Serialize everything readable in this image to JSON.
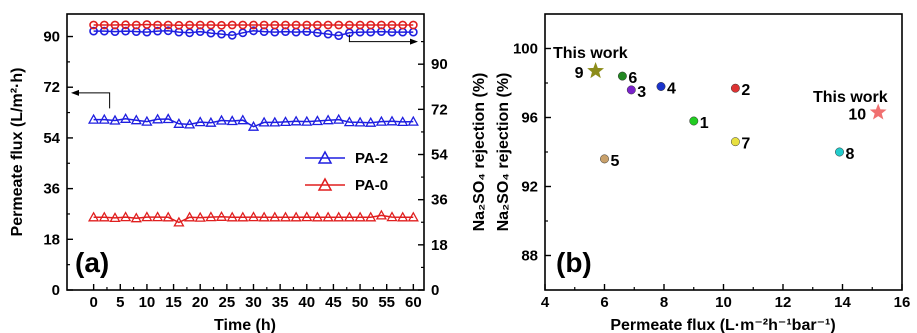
{
  "chart_data": [
    {
      "type": "line",
      "panel_label": "(a)",
      "xlabel": "Time (h)",
      "ylabel_left": "Permeate flux (L/m²·h)",
      "ylabel_right": "Na₂SO₄ rejection (%)",
      "xlim": [
        -5,
        62
      ],
      "ylim_left": [
        0,
        98
      ],
      "ylim_right": [
        0,
        110
      ],
      "xticks": [
        "0",
        "5",
        "10",
        "15",
        "20",
        "25",
        "30",
        "35",
        "40",
        "45",
        "50",
        "55",
        "60"
      ],
      "yticks_left": [
        "0",
        "18",
        "36",
        "54",
        "72",
        "90"
      ],
      "yticks_right": [
        "0",
        "18",
        "36",
        "54",
        "72",
        "90"
      ],
      "legend_position": "center-right",
      "legend": [
        "PA-2",
        "PA-0"
      ],
      "series": [
        {
          "name": "PA-2",
          "axis": "left",
          "marker": "triangle",
          "color": "#1f1fe0",
          "x": [
            0,
            2,
            4,
            6,
            8,
            10,
            12,
            14,
            16,
            18,
            20,
            22,
            24,
            26,
            28,
            30,
            32,
            34,
            36,
            38,
            40,
            42,
            44,
            46,
            48,
            50,
            52,
            54,
            56,
            58,
            60
          ],
          "values": [
            60.5,
            60.5,
            60.2,
            60.8,
            60.3,
            59.8,
            60.6,
            60.7,
            59.0,
            58.8,
            59.6,
            59.4,
            60.2,
            60.0,
            60.3,
            58.0,
            59.5,
            59.5,
            59.7,
            59.9,
            59.8,
            60.0,
            60.3,
            60.5,
            59.6,
            59.5,
            59.4,
            59.8,
            59.9,
            59.7,
            59.8
          ]
        },
        {
          "name": "PA-0",
          "axis": "left",
          "marker": "triangle",
          "color": "#e01f1f",
          "x": [
            0,
            2,
            4,
            6,
            8,
            10,
            12,
            14,
            16,
            18,
            20,
            22,
            24,
            26,
            28,
            30,
            32,
            34,
            36,
            38,
            40,
            42,
            44,
            46,
            48,
            50,
            52,
            54,
            56,
            58,
            60
          ],
          "values": [
            25.8,
            25.8,
            25.6,
            25.9,
            25.5,
            25.9,
            25.9,
            25.8,
            24.0,
            25.8,
            25.7,
            25.9,
            26.0,
            25.8,
            25.8,
            25.9,
            25.8,
            25.8,
            25.8,
            25.8,
            25.9,
            25.8,
            25.8,
            25.8,
            25.8,
            25.8,
            25.8,
            26.5,
            25.9,
            25.8,
            25.8
          ]
        },
        {
          "name": "PA-2",
          "axis": "right",
          "marker": "circle",
          "color": "#1f1fe0",
          "x": [
            0,
            2,
            4,
            6,
            8,
            10,
            12,
            14,
            16,
            18,
            20,
            22,
            24,
            26,
            28,
            30,
            32,
            34,
            36,
            38,
            40,
            42,
            44,
            46,
            48,
            50,
            52,
            54,
            56,
            58,
            60
          ],
          "values": [
            103.2,
            103.2,
            103.0,
            103.2,
            103.0,
            102.8,
            103.2,
            103.3,
            102.8,
            102.5,
            103.0,
            102.4,
            102.0,
            101.5,
            102.5,
            103.3,
            103.0,
            102.8,
            103.0,
            102.8,
            103.0,
            102.5,
            102.0,
            101.4,
            102.5,
            102.8,
            102.8,
            103.0,
            102.8,
            102.8,
            102.8
          ]
        },
        {
          "name": "PA-0",
          "axis": "right",
          "marker": "circle",
          "color": "#e01f1f",
          "x": [
            0,
            2,
            4,
            6,
            8,
            10,
            12,
            14,
            16,
            18,
            20,
            22,
            24,
            26,
            28,
            30,
            32,
            34,
            36,
            38,
            40,
            42,
            44,
            46,
            48,
            50,
            52,
            54,
            56,
            58,
            60
          ],
          "values": [
            105.6,
            105.6,
            105.6,
            105.7,
            105.6,
            105.8,
            105.6,
            105.6,
            105.5,
            105.6,
            105.6,
            105.6,
            105.5,
            105.6,
            105.6,
            105.6,
            105.6,
            105.6,
            105.6,
            105.6,
            105.6,
            105.6,
            105.6,
            105.6,
            105.6,
            105.6,
            105.6,
            105.6,
            105.6,
            105.6,
            105.6
          ]
        }
      ],
      "arrows": [
        {
          "direction": "left",
          "x": 3,
          "y_axis": "left",
          "y": 70,
          "target": "left-axis"
        },
        {
          "direction": "right",
          "x": 48,
          "y_axis": "right",
          "y": 99,
          "target": "right-axis"
        }
      ]
    },
    {
      "type": "scatter",
      "panel_label": "(b)",
      "xlabel": "Permeate flux (L·m⁻²h⁻¹bar⁻¹)",
      "ylabel": "Na₂SO₄ rejection (%)",
      "xlim": [
        4,
        16
      ],
      "ylim": [
        86,
        102
      ],
      "xticks": [
        "4",
        "6",
        "8",
        "10",
        "12",
        "14",
        "16"
      ],
      "yticks": [
        "88",
        "92",
        "96",
        "100"
      ],
      "annotations": [
        "This work",
        "This work"
      ],
      "points": [
        {
          "label": "1",
          "x": 9.0,
          "y": 95.8,
          "color": "#22cc22",
          "marker": "circle"
        },
        {
          "label": "2",
          "x": 10.4,
          "y": 97.7,
          "color": "#dd3333",
          "marker": "circle"
        },
        {
          "label": "3",
          "x": 6.9,
          "y": 97.6,
          "color": "#7a22cc",
          "marker": "circle"
        },
        {
          "label": "4",
          "x": 7.9,
          "y": 97.8,
          "color": "#1a33cc",
          "marker": "circle"
        },
        {
          "label": "5",
          "x": 6.0,
          "y": 93.6,
          "color": "#c8a06a",
          "marker": "circle"
        },
        {
          "label": "6",
          "x": 6.6,
          "y": 98.4,
          "color": "#228822",
          "marker": "circle"
        },
        {
          "label": "7",
          "x": 10.4,
          "y": 94.6,
          "color": "#e8e040",
          "marker": "circle"
        },
        {
          "label": "8",
          "x": 13.9,
          "y": 94.0,
          "color": "#22cccc",
          "marker": "circle"
        },
        {
          "label": "9",
          "x": 5.7,
          "y": 98.7,
          "color": "#8c8c1a",
          "marker": "star"
        },
        {
          "label": "10",
          "x": 15.2,
          "y": 96.3,
          "color": "#f07070",
          "marker": "star"
        }
      ]
    }
  ]
}
